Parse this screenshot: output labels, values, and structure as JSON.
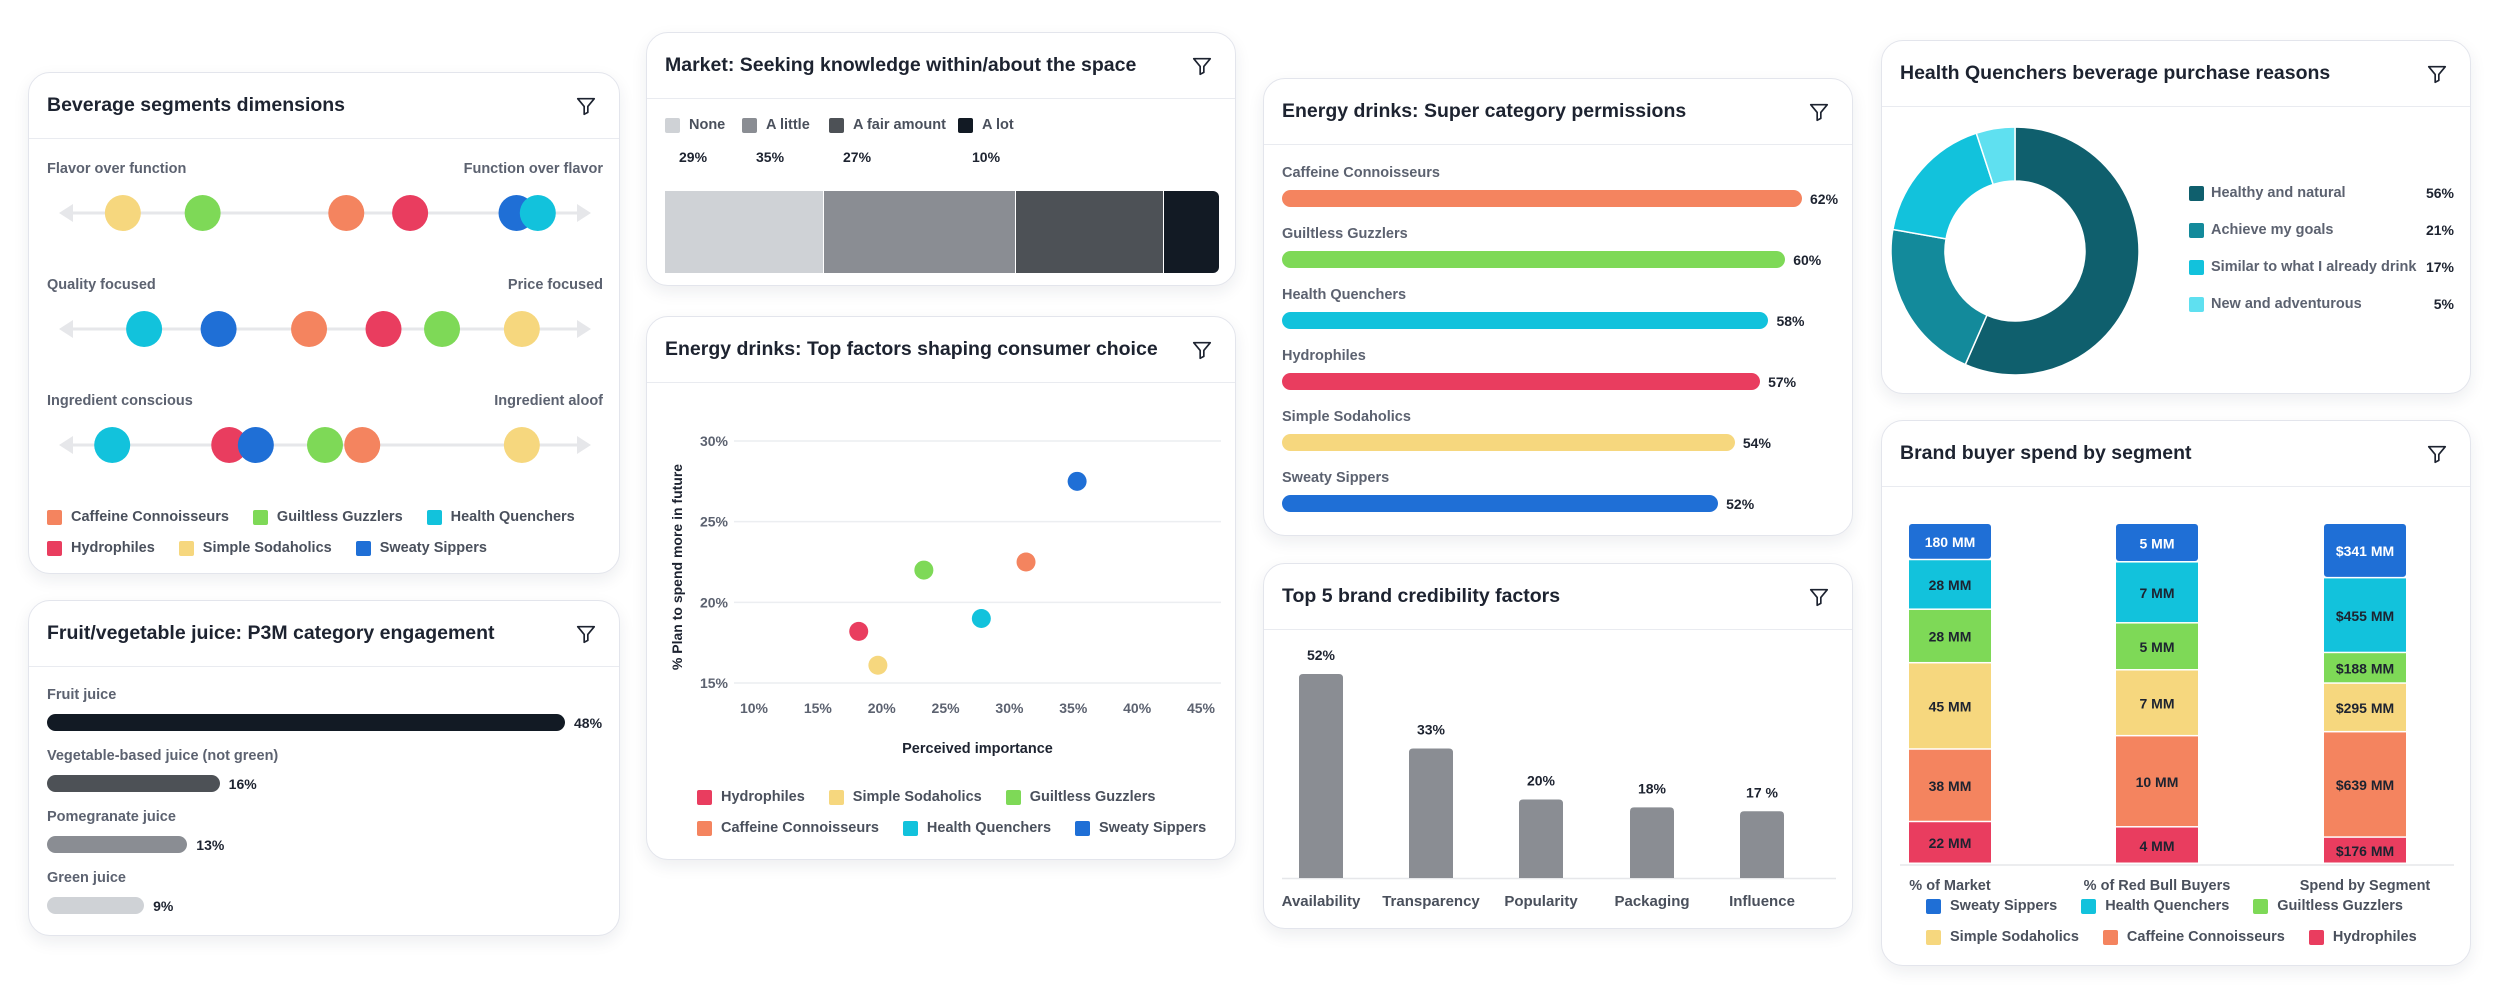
{
  "colors": {
    "caffeine": "#f4845f",
    "guiltless": "#7ed957",
    "health": "#12c2dc",
    "hydro": "#e93d5f",
    "simple": "#f6d77e",
    "sweaty": "#1f6fd6",
    "none": "#cfd2d6",
    "alittle": "#8a8d93",
    "afair": "#4d5156",
    "alot": "#121a24",
    "gray": "#8a8d93"
  },
  "segments": {
    "caffeine": "Caffeine Connoisseurs",
    "guiltless": "Guiltless Guzzlers",
    "health": "Health Quenchers",
    "hydro": "Hydrophiles",
    "simple": "Simple Sodaholics",
    "sweaty": "Sweaty Sippers"
  },
  "card1": {
    "title": "Beverage segments dimensions",
    "chart_data": {
      "type": "scatter",
      "title": "Beverage segments dimensions",
      "dimensions": [
        {
          "left": "Flavor over function",
          "right": "Function over flavor",
          "points": [
            {
              "segment": "simple",
              "pos": 0.12
            },
            {
              "segment": "guiltless",
              "pos": 0.27
            },
            {
              "segment": "caffeine",
              "pos": 0.54
            },
            {
              "segment": "hydro",
              "pos": 0.66
            },
            {
              "segment": "sweaty",
              "pos": 0.86
            },
            {
              "segment": "health",
              "pos": 0.9
            }
          ]
        },
        {
          "left": "Quality focused",
          "right": "Price focused",
          "points": [
            {
              "segment": "health",
              "pos": 0.16
            },
            {
              "segment": "sweaty",
              "pos": 0.3
            },
            {
              "segment": "caffeine",
              "pos": 0.47
            },
            {
              "segment": "hydro",
              "pos": 0.61
            },
            {
              "segment": "guiltless",
              "pos": 0.72
            },
            {
              "segment": "simple",
              "pos": 0.87
            }
          ]
        },
        {
          "left": "Ingredient conscious",
          "right": "Ingredient aloof",
          "points": [
            {
              "segment": "health",
              "pos": 0.1
            },
            {
              "segment": "hydro",
              "pos": 0.32
            },
            {
              "segment": "sweaty",
              "pos": 0.37
            },
            {
              "segment": "guiltless",
              "pos": 0.5
            },
            {
              "segment": "caffeine",
              "pos": 0.57
            },
            {
              "segment": "simple",
              "pos": 0.87
            }
          ]
        }
      ]
    },
    "legend": [
      [
        "caffeine",
        "guiltless",
        "health"
      ],
      [
        "hydro",
        "simple",
        "sweaty"
      ]
    ]
  },
  "card2": {
    "title": "Fruit/vegetable juice: P3M category engagement",
    "chart_data": {
      "type": "bar",
      "orientation": "horizontal",
      "title": "Fruit/vegetable juice: P3M category engagement",
      "categories": [
        "Fruit juice",
        "Vegetable-based juice (not green)",
        "Pomegranate juice",
        "Green juice"
      ],
      "values": [
        48,
        16,
        13,
        9
      ],
      "value_labels": [
        "48%",
        "16%",
        "13%",
        "9%"
      ],
      "bar_colors": [
        "#121a24",
        "#4d5156",
        "#8a8d93",
        "#cfd2d6"
      ],
      "xlim": [
        0,
        48
      ]
    }
  },
  "card3": {
    "title": "Market: Seeking knowledge within/about the space",
    "chart_data": {
      "type": "bar",
      "stacked": true,
      "title": "Market: Seeking knowledge within/about the space",
      "series": [
        {
          "name": "None",
          "key": "none",
          "value": 29,
          "label": "29%"
        },
        {
          "name": "A little",
          "key": "alittle",
          "value": 35,
          "label": "35%"
        },
        {
          "name": "A fair amount",
          "key": "afair",
          "value": 27,
          "label": "27%"
        },
        {
          "name": "A lot",
          "key": "alot",
          "value": 10,
          "label": "10%"
        }
      ]
    }
  },
  "card4": {
    "title": "Energy drinks: Top factors shaping consumer choice",
    "chart_data": {
      "type": "scatter",
      "title": "Energy drinks: Top factors shaping consumer choice",
      "xlabel": "Perceived importance",
      "ylabel": "% Plan to spend more in future",
      "xlim": [
        10,
        45
      ],
      "ylim": [
        15,
        30
      ],
      "xticks": [
        "10%",
        "15%",
        "20%",
        "25%",
        "30%",
        "35%",
        "40%",
        "45%"
      ],
      "yticks": [
        "15%",
        "20%",
        "25%",
        "30%"
      ],
      "xtick_values": [
        10,
        15,
        20,
        25,
        30,
        35,
        40,
        45
      ],
      "ytick_values": [
        15,
        20,
        25,
        30
      ],
      "points": [
        {
          "segment": "hydro",
          "x": 18.2,
          "y": 18.2
        },
        {
          "segment": "simple",
          "x": 19.7,
          "y": 16.1
        },
        {
          "segment": "guiltless",
          "x": 23.3,
          "y": 22.0
        },
        {
          "segment": "health",
          "x": 27.8,
          "y": 19.0
        },
        {
          "segment": "caffeine",
          "x": 31.3,
          "y": 22.5
        },
        {
          "segment": "sweaty",
          "x": 35.3,
          "y": 27.5
        }
      ]
    },
    "legend": [
      [
        "hydro",
        "simple",
        "guiltless"
      ],
      [
        "caffeine",
        "health",
        "sweaty"
      ]
    ]
  },
  "card5": {
    "title": "Energy drinks: Super category permissions",
    "chart_data": {
      "type": "bar",
      "orientation": "horizontal",
      "title": "Energy drinks: Super category permissions",
      "categories": [
        "Caffeine Connoisseurs",
        "Guiltless Guzzlers",
        "Health Quenchers",
        "Hydrophiles",
        "Simple Sodaholics",
        "Sweaty Sippers"
      ],
      "keys": [
        "caffeine",
        "guiltless",
        "health",
        "hydro",
        "simple",
        "sweaty"
      ],
      "values": [
        62,
        60,
        58,
        57,
        54,
        52
      ],
      "value_labels": [
        "62%",
        "60%",
        "58%",
        "57%",
        "54%",
        "52%"
      ],
      "xlim": [
        0,
        62
      ]
    }
  },
  "card6": {
    "title": "Top 5 brand credibility factors",
    "chart_data": {
      "type": "bar",
      "title": "Top 5 brand credibility factors",
      "categories": [
        "Availability",
        "Transparency",
        "Popularity",
        "Packaging",
        "Influence"
      ],
      "values": [
        52,
        33,
        20,
        18,
        17
      ],
      "value_labels": [
        "52%",
        "33%",
        "20%",
        "18%",
        "17 %"
      ],
      "ylim": [
        0,
        52
      ]
    }
  },
  "card7": {
    "title": "Health Quenchers beverage purchase reasons",
    "chart_data": {
      "type": "pie",
      "donut": true,
      "title": "Health Quenchers beverage purchase reasons",
      "labels": [
        "Healthy and natural",
        "Achieve my goals",
        "Similar to what I already drink",
        "New and adventurous"
      ],
      "values": [
        56,
        21,
        17,
        5
      ],
      "value_labels": [
        "56%",
        "21%",
        "17%",
        "5%"
      ],
      "colors": [
        "#0f5f6d",
        "#138a9b",
        "#12c2dc",
        "#5fe0f0"
      ]
    }
  },
  "card8": {
    "title": "Brand buyer spend by segment",
    "chart_data": {
      "type": "bar",
      "stacked": true,
      "title": "Brand buyer spend by segment",
      "categories": [
        "% of Market",
        "% of Red Bull Buyers",
        "Spend by Segment"
      ],
      "stack_order_top_to_bottom": [
        "sweaty",
        "health",
        "guiltless",
        "simple",
        "caffeine",
        "hydro"
      ],
      "columns": [
        {
          "values": [
            180,
            28,
            28,
            45,
            38,
            22
          ],
          "labels": [
            "180 MM",
            "28 MM",
            "28 MM",
            "45 MM",
            "38 MM",
            "22 MM"
          ]
        },
        {
          "values": [
            5,
            7,
            5,
            7,
            10,
            4
          ],
          "labels": [
            "5 MM",
            "7 MM",
            "5 MM",
            "7 MM",
            "10 MM",
            "4 MM"
          ]
        },
        {
          "values": [
            341,
            455,
            188,
            295,
            639,
            176
          ],
          "labels": [
            "$341 MM",
            "$455 MM",
            "$188 MM",
            "$295 MM",
            "$639 MM",
            "$176 MM"
          ]
        }
      ],
      "display_share": [
        [
          0.105,
          0.144,
          0.155,
          0.25,
          0.21,
          0.121
        ],
        [
          0.11,
          0.174,
          0.134,
          0.188,
          0.26,
          0.104
        ],
        [
          0.16,
          0.22,
          0.09,
          0.143,
          0.31,
          0.077
        ]
      ]
    },
    "legend": [
      [
        "sweaty",
        "health",
        "guiltless"
      ],
      [
        "simple",
        "caffeine",
        "hydro"
      ]
    ]
  }
}
